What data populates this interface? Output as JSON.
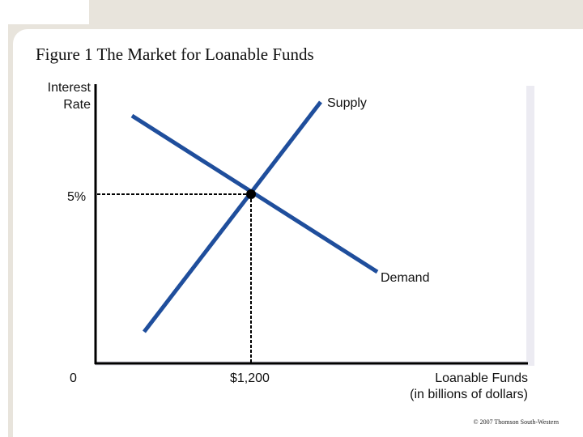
{
  "title": "Figure 1 The Market for Loanable Funds",
  "axes": {
    "y_label_line1": "Interest",
    "y_label_line2": "Rate",
    "x_label_line1": "Loanable Funds",
    "x_label_line2": "(in billions of dollars)",
    "origin_label": "0"
  },
  "curves": {
    "supply_label": "Supply",
    "demand_label": "Demand",
    "color": "#1f4e9c"
  },
  "equilibrium": {
    "rate_label": "5%",
    "quantity_label": "$1,200"
  },
  "copyright": "© 2007 Thomson South-Western"
}
